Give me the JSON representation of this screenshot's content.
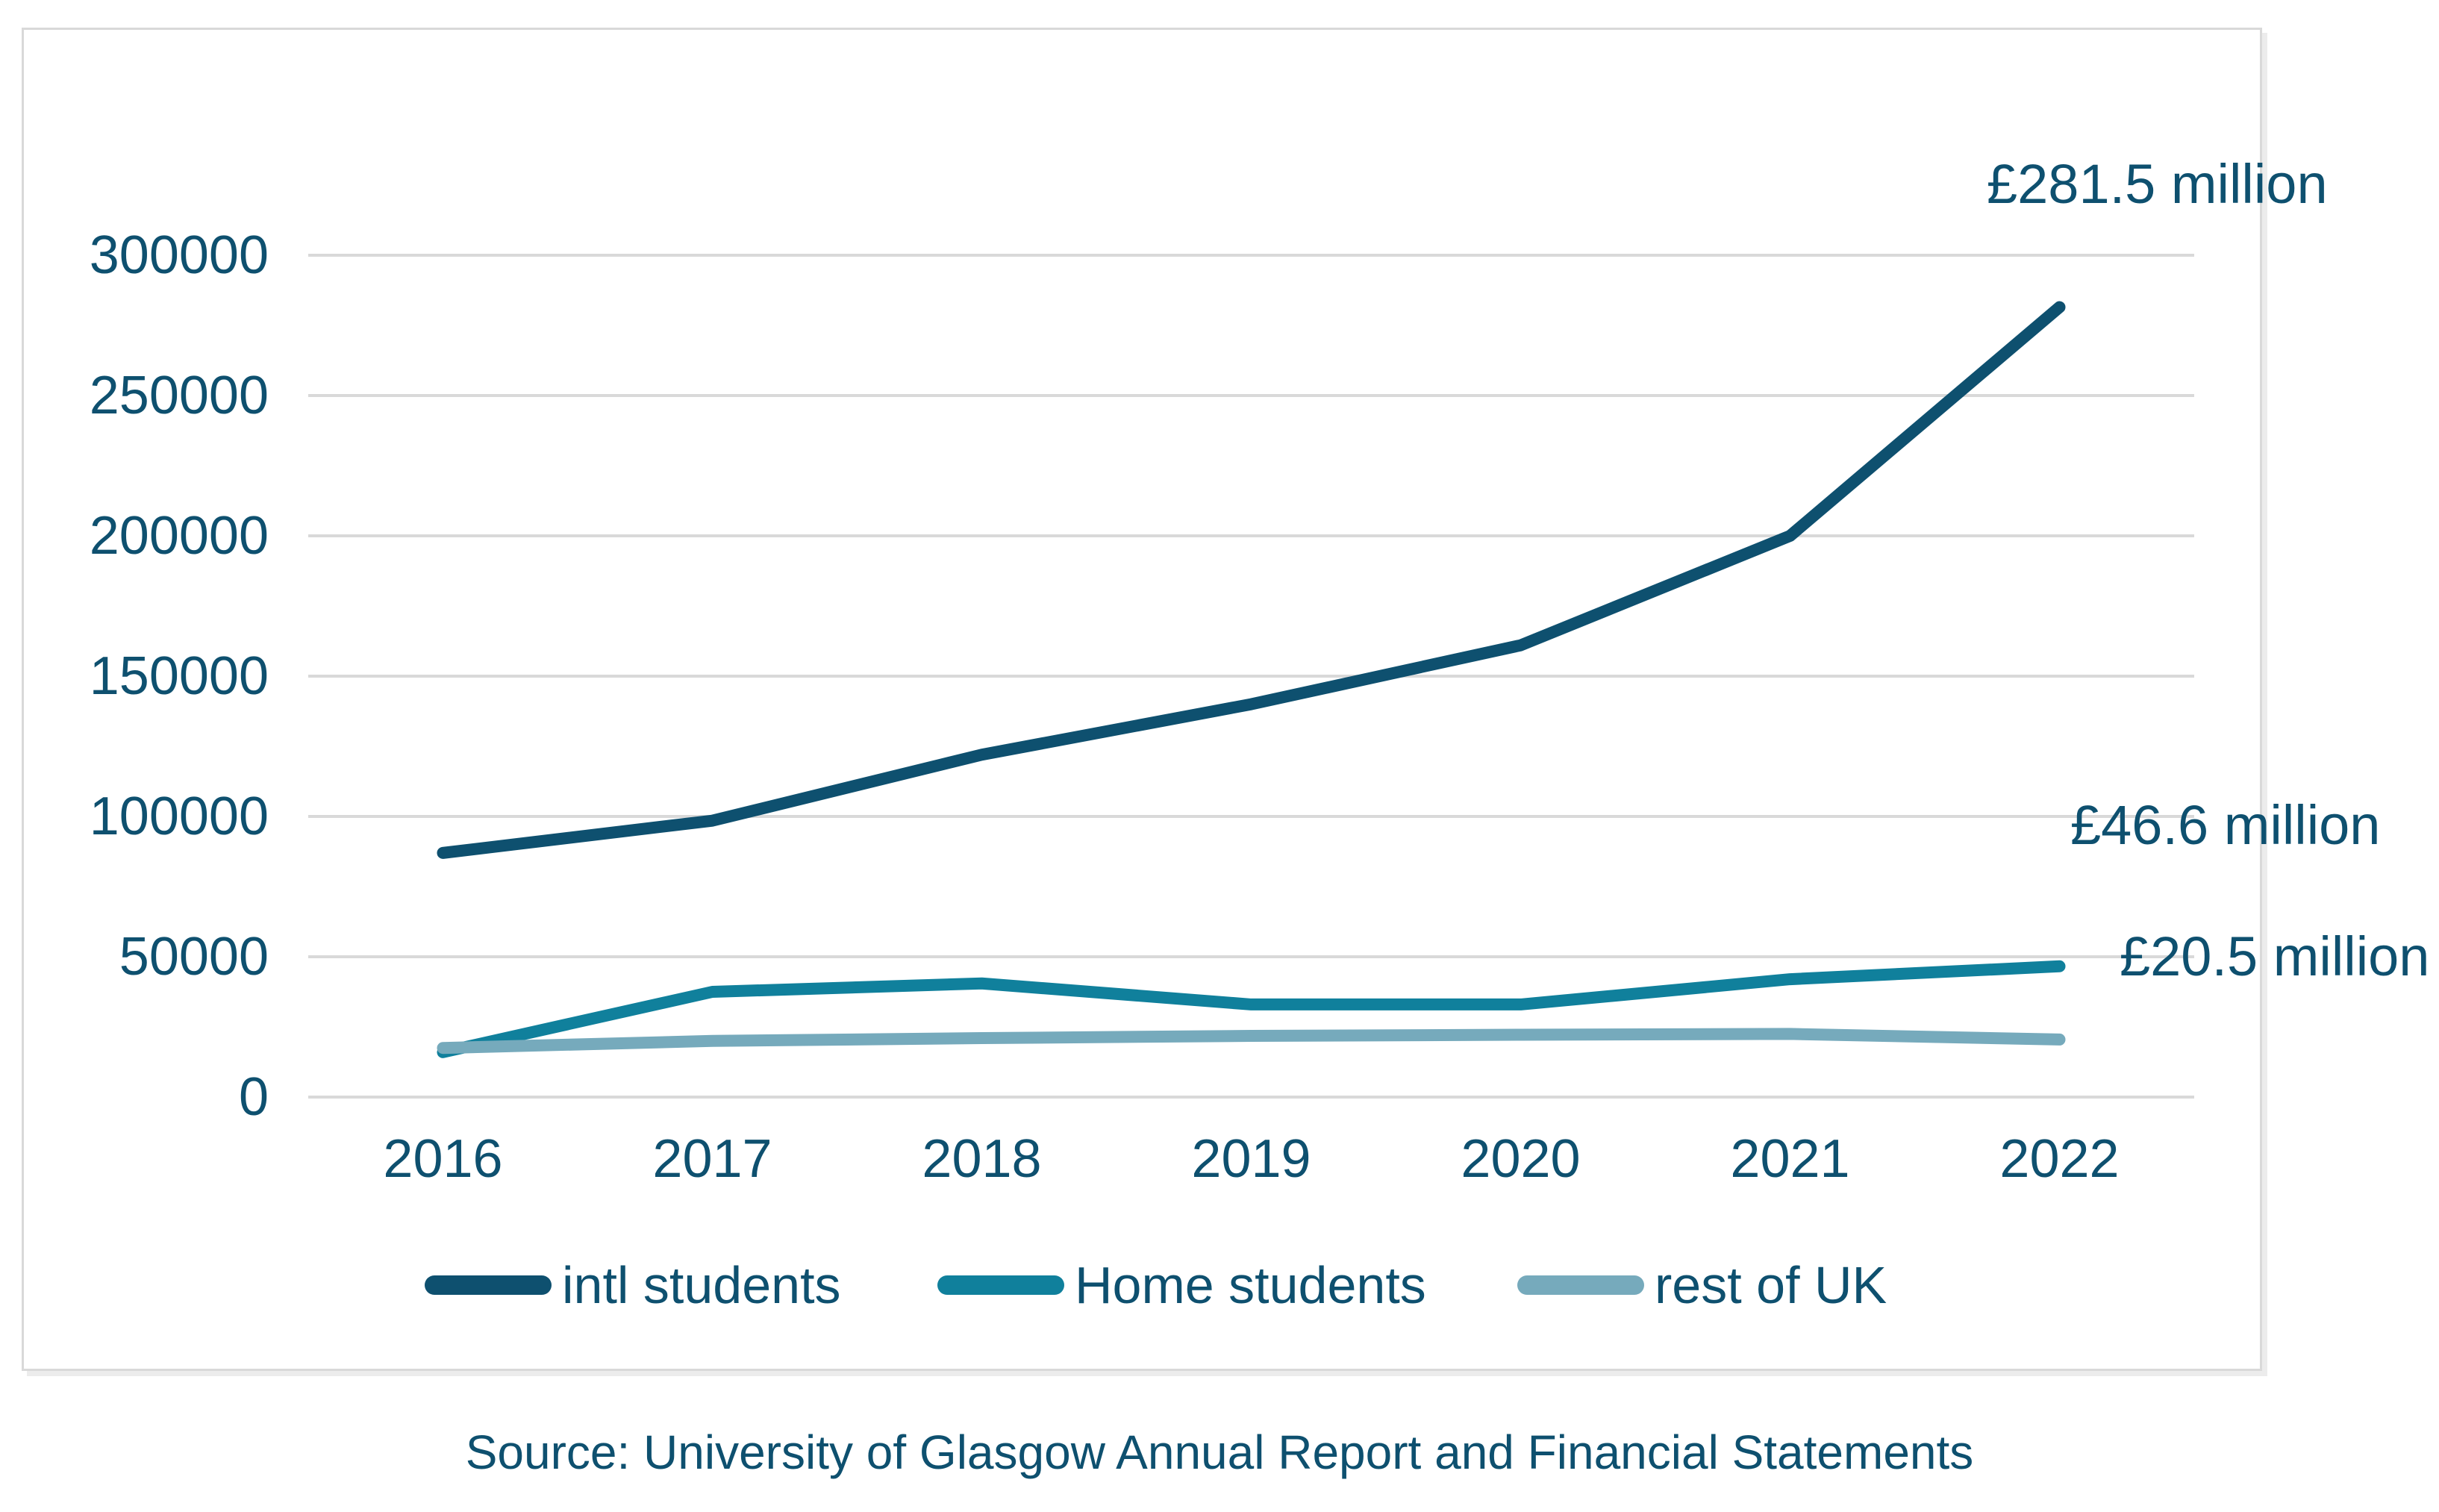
{
  "chart_data": {
    "type": "line",
    "title": "",
    "categories": [
      "2016",
      "2017",
      "2018",
      "2019",
      "2020",
      "2021",
      "2022"
    ],
    "series": [
      {
        "name": "intl students",
        "color": "#0E506F",
        "values": [
          87000,
          98500,
          122000,
          140000,
          161000,
          200000,
          281500
        ]
      },
      {
        "name": "Home students",
        "color": "#10809C",
        "values": [
          16000,
          37500,
          40500,
          33000,
          33000,
          42000,
          46600
        ]
      },
      {
        "name": "rest of UK",
        "color": "#76AABC",
        "values": [
          17500,
          20000,
          21000,
          21800,
          22200,
          22500,
          20500
        ]
      }
    ],
    "ylim": [
      0,
      300000
    ],
    "yticks": [
      0,
      50000,
      100000,
      150000,
      200000,
      250000,
      300000
    ],
    "xlabel": "",
    "ylabel": "",
    "grid": "horizontal",
    "gridline_color": "#D9D9D9",
    "text_color": "#0E506F",
    "legend_position": "bottom",
    "annotations": [
      {
        "text": "£281.5 million",
        "refers_to": "intl students 2022"
      },
      {
        "text": "£46.6 million",
        "refers_to": "Home students 2022"
      },
      {
        "text": "£20.5 million",
        "refers_to": "rest of UK 2022"
      }
    ],
    "source": "Source: University of Glasgow Annual Report and Financial Statements"
  }
}
